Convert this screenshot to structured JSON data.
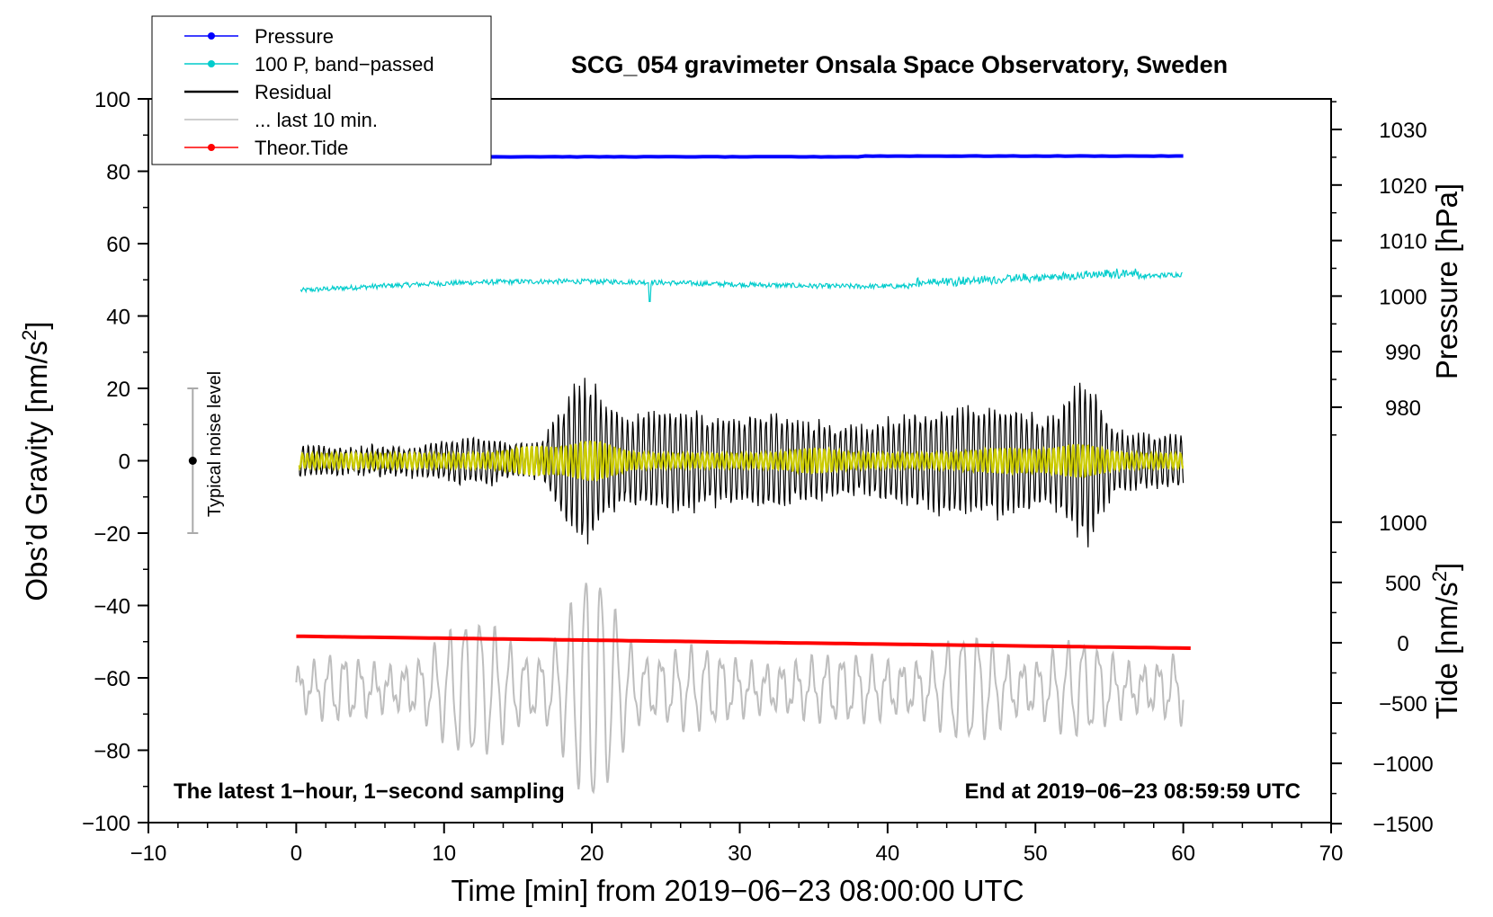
{
  "chart_data": {
    "type": "line",
    "title": "SCG_054 gravimeter Onsala Space Observatory, Sweden",
    "xlabel": "Time [min] from 2019−06−23 08:00:00 UTC",
    "ylabel_main": "Obs’d Gravity [nm/s",
    "ylabel_main_sup": "2",
    "ylabel_main_end": "]",
    "ylabel_pressure": "Pressure [hPa]",
    "ylabel_tide": "Tide [nm/s",
    "ylabel_tide_sup": "2",
    "ylabel_tide_end": "]",
    "xlim": [
      -10,
      70
    ],
    "ylim": [
      -100,
      100
    ],
    "x_ticks": [
      "−10",
      "0",
      "10",
      "20",
      "30",
      "40",
      "50",
      "60",
      "70"
    ],
    "x_tick_values": [
      -10,
      0,
      10,
      20,
      30,
      40,
      50,
      60,
      70
    ],
    "y_ticks": [
      "100",
      "80",
      "60",
      "40",
      "20",
      "0",
      "−20",
      "−40",
      "−60",
      "−80",
      "−100"
    ],
    "y_tick_values": [
      100,
      80,
      60,
      40,
      20,
      0,
      -20,
      -40,
      -60,
      -80,
      -100
    ],
    "pressure_axis": {
      "ticks": [
        "1030",
        "1020",
        "1010",
        "1000",
        "990",
        "980"
      ],
      "tick_values": [
        1030,
        1020,
        1010,
        1000,
        990,
        980
      ],
      "map_gravity_at_1000": 45.5,
      "gravity_per_hpa": 1.535
    },
    "tide_axis": {
      "ticks": [
        "1000",
        "500",
        "0",
        "−500",
        "−1000",
        "−1500"
      ],
      "tick_values": [
        1000,
        500,
        0,
        -500,
        -1000,
        -1500
      ],
      "map_gravity_at_0": -50.3,
      "gravity_per_unit": 0.03333
    },
    "legend": [
      {
        "label": "Pressure",
        "color": "#0000ff",
        "marker": true
      },
      {
        "label": "100 P, band−passed",
        "color": "#00cccc",
        "marker": true
      },
      {
        "label": "Residual",
        "color": "#000000",
        "marker": false
      },
      {
        "label": "... last 10 min.",
        "color": "#bebebe",
        "marker": false
      },
      {
        "label": "Theor.Tide",
        "color": "#ff0000",
        "marker": true
      }
    ],
    "series": [
      {
        "name": "Pressure",
        "color": "#0000ff",
        "start_value": 84,
        "end_value": 84.2
      },
      {
        "name": "100 P, band−passed",
        "color": "#00cccc",
        "start_value": 47,
        "end_value": 51
      },
      {
        "name": "Residual",
        "color": "#000000",
        "approx_range": [
          -32,
          30
        ]
      },
      {
        "name": "Residual (yellow envelope)",
        "color": "#cccc00",
        "approx_range": [
          -7,
          7
        ]
      },
      {
        "name": "... last 10 min.",
        "color": "#bebebe",
        "approx_range": [
          -92,
          -33
        ]
      },
      {
        "name": "Theor.Tide",
        "color": "#ff0000",
        "start_value": -48.5,
        "end_value": -51.8
      }
    ],
    "noise_bar": {
      "x": -7,
      "center": 0,
      "low": -20,
      "high": 20,
      "label": "Typical noise level"
    },
    "annotation_left": "The latest 1−hour, 1−second sampling",
    "annotation_right": "End at 2019−06−23 08:59:59 UTC"
  }
}
